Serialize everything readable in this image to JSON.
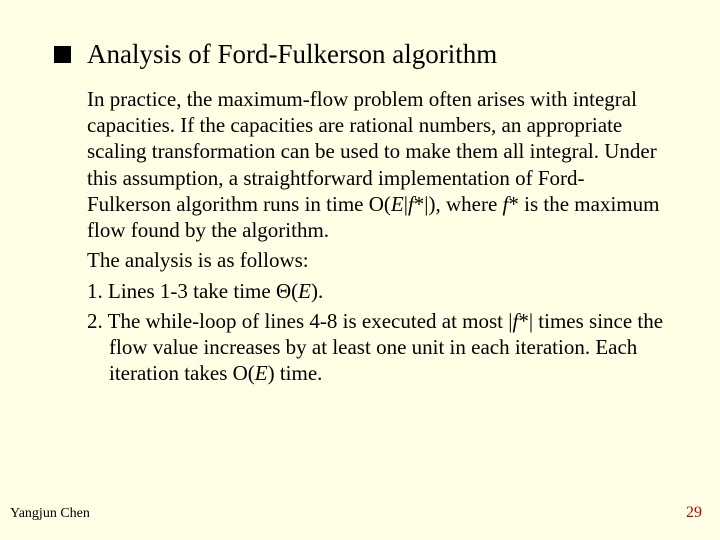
{
  "slide": {
    "background_color": "#ffffe6",
    "text_color": "#000000",
    "page_number_color": "#cc0000",
    "bullet_color": "#000000",
    "font_family": "Times New Roman",
    "title_fontsize_pt": 27,
    "body_fontsize_pt": 21,
    "footer_fontsize_pt": 14
  },
  "title": "Analysis of Ford-Fulkerson algorithm",
  "body": {
    "p1_a": "In practice, the maximum-flow problem often arises with integral capacities. If the capacities are rational numbers, an appropriate scaling transformation can be used to make them all integral. Under this assumption, a straightforward implementation of Ford-Fulkerson algorithm runs in time O(",
    "p1_b": "E",
    "p1_c": "|",
    "p1_d": "f",
    "p1_e": "*|), where ",
    "p1_f": "f",
    "p1_g": "* is the maximum flow found by the algorithm.",
    "p2": "The analysis is as follows:",
    "p3_a": "1. Lines 1-3 take time ",
    "p3_theta": "Θ",
    "p3_b": "(",
    "p3_c": "E",
    "p3_d": ").",
    "p4_a": "2. The while-loop of lines 4-8 is executed at most |",
    "p4_b": "f",
    "p4_c": "*| times since the flow value increases by at least one unit in each iteration. Each iteration takes O(",
    "p4_d": "E",
    "p4_e": ") time."
  },
  "footer": {
    "author": "Yangjun Chen",
    "page_number": "29"
  }
}
